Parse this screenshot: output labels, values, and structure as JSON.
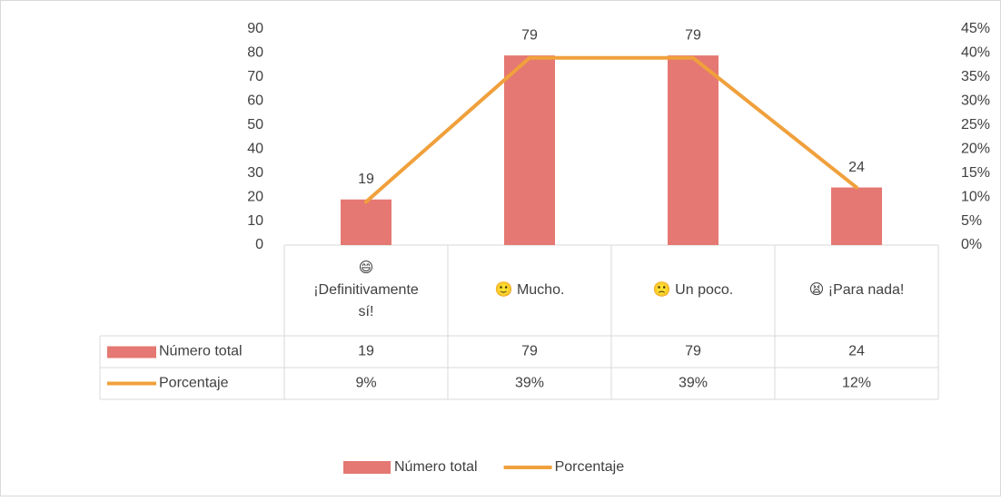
{
  "chart_data": {
    "type": "combo",
    "categories": [
      "😄 ¡Definitivamente sí!",
      "🙂 Mucho.",
      "🙁 Un poco.",
      "😫 ¡Para nada!"
    ],
    "series": [
      {
        "name": "Número total",
        "type": "bar",
        "color": "#e57872",
        "values": [
          19,
          79,
          79,
          24
        ]
      },
      {
        "name": "Porcentaje",
        "type": "line",
        "axis": "y2",
        "color": "#f0a03c",
        "values": [
          9,
          39,
          39,
          12
        ],
        "value_labels": [
          "9%",
          "39%",
          "39%",
          "12%"
        ]
      }
    ],
    "ylim": [
      0,
      90
    ],
    "yticks": [
      0,
      10,
      20,
      30,
      40,
      50,
      60,
      70,
      80,
      90
    ],
    "y2lim": [
      0,
      45
    ],
    "y2ticks": [
      {
        "value": 0,
        "label": "0%"
      },
      {
        "value": 5,
        "label": "5%"
      },
      {
        "value": 10,
        "label": "10%"
      },
      {
        "value": 15,
        "label": "15%"
      },
      {
        "value": 20,
        "label": "20%"
      },
      {
        "value": 25,
        "label": "25%"
      },
      {
        "value": 30,
        "label": "30%"
      },
      {
        "value": 35,
        "label": "35%"
      },
      {
        "value": 40,
        "label": "40%"
      },
      {
        "value": 45,
        "label": "45%"
      }
    ],
    "legend": "bottom",
    "data_table": true
  }
}
